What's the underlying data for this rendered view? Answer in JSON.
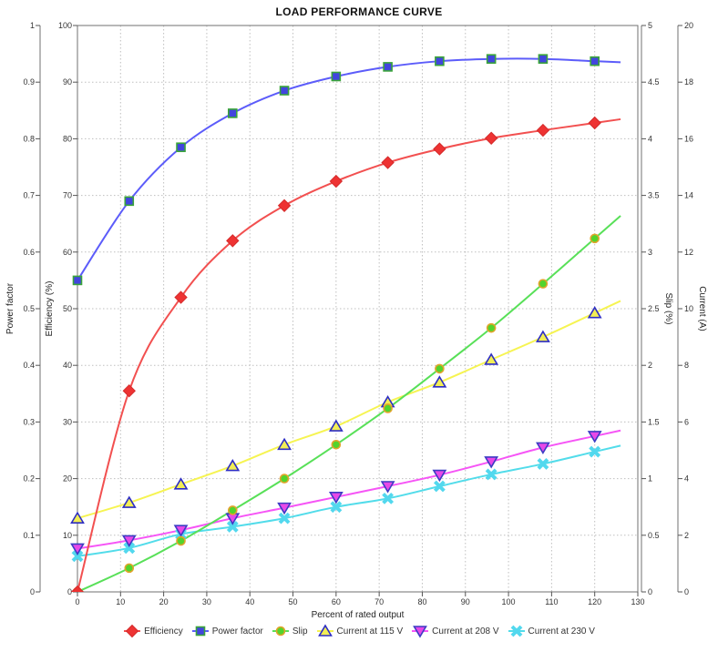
{
  "chart_data": {
    "type": "line",
    "title": "LOAD PERFORMANCE CURVE",
    "x_axis": {
      "label": "Percent of rated output",
      "min": 0,
      "max": 130,
      "step": 10
    },
    "y_axes": {
      "power_factor": {
        "label": "Power factor",
        "min": 0,
        "max": 1,
        "step": 0.1
      },
      "efficiency": {
        "label": "Efficiency (%)",
        "min": 0,
        "max": 100,
        "step": 10
      },
      "slip": {
        "label": "Slip (%)",
        "min": 0,
        "max": 5,
        "step": 0.5
      },
      "current": {
        "label": "Current (A)",
        "min": 0,
        "max": 20,
        "step": 2
      }
    },
    "grid": true,
    "legend_position": "bottom",
    "x_values": [
      0,
      12,
      24,
      36,
      48,
      60,
      72,
      84,
      96,
      108,
      120
    ],
    "series": [
      {
        "name": "efficiency",
        "label": "Efficiency",
        "axis": "efficiency",
        "line_color": "#f25050",
        "marker": {
          "shape": "diamond",
          "fill": "#ee3333",
          "stroke": "#d42a2a"
        },
        "values": [
          0,
          35.5,
          52,
          62,
          68.2,
          72.5,
          75.8,
          78.2,
          80.1,
          81.5,
          82.8
        ]
      },
      {
        "name": "power-factor",
        "label": "Power factor",
        "axis": "power_factor",
        "line_color": "#5c5cfa",
        "marker": {
          "shape": "square",
          "fill": "#4245de",
          "stroke": "#3aa43a"
        },
        "values": [
          0.55,
          0.69,
          0.785,
          0.845,
          0.885,
          0.91,
          0.927,
          0.937,
          0.941,
          0.941,
          0.937
        ]
      },
      {
        "name": "slip",
        "label": "Slip",
        "axis": "slip",
        "line_color": "#58e058",
        "marker": {
          "shape": "circle",
          "fill": "#52d42c",
          "stroke": "#e2a42c"
        },
        "values": [
          0,
          0.21,
          0.45,
          0.72,
          1.0,
          1.3,
          1.62,
          1.97,
          2.33,
          2.72,
          3.12
        ]
      },
      {
        "name": "current-115",
        "label": "Current at 115 V",
        "axis": "current",
        "line_color": "#f6f452",
        "marker": {
          "shape": "triangle-up",
          "fill": "#f2ee55",
          "stroke": "#2d2dc4"
        },
        "values": [
          2.6,
          3.15,
          3.8,
          4.45,
          5.2,
          5.85,
          6.7,
          7.4,
          8.2,
          9.0,
          9.85
        ]
      },
      {
        "name": "current-208",
        "label": "Current at 208 V",
        "axis": "current",
        "line_color": "#f655f6",
        "marker": {
          "shape": "triangle-down",
          "fill": "#e848e8",
          "stroke": "#3c3cc4"
        },
        "values": [
          1.53,
          1.82,
          2.18,
          2.6,
          2.97,
          3.35,
          3.73,
          4.13,
          4.6,
          5.1,
          5.5
        ]
      },
      {
        "name": "current-230",
        "label": "Current at 230 V",
        "axis": "current",
        "line_color": "#52dcea",
        "marker": {
          "shape": "x-cross",
          "fill": "#52d8ee",
          "stroke": "#52d8ee"
        },
        "values": [
          1.26,
          1.55,
          2.04,
          2.3,
          2.6,
          3.0,
          3.3,
          3.73,
          4.15,
          4.52,
          4.95
        ]
      }
    ]
  }
}
